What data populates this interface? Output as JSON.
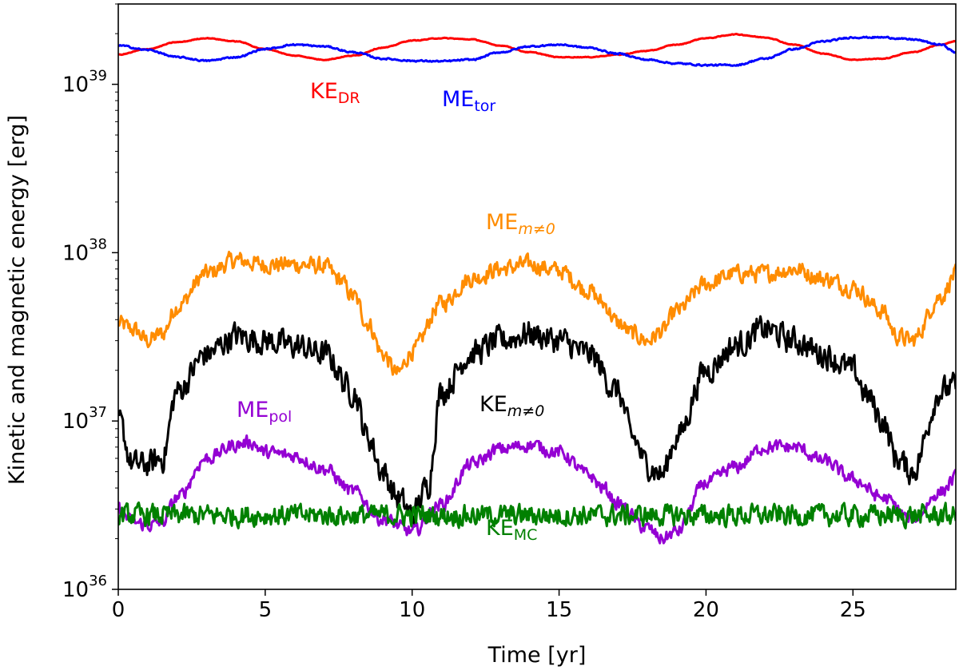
{
  "chart_data": {
    "type": "line",
    "title": "",
    "xlabel": "Time [yr]",
    "ylabel": "Kinetic and magnetic energy [erg]",
    "xlim": [
      0,
      28.5
    ],
    "ylim": [
      1e+36,
      3e+39
    ],
    "yscale": "log",
    "xticks": [
      0,
      5,
      10,
      15,
      20,
      25
    ],
    "xtick_labels": [
      "0",
      "5",
      "10",
      "15",
      "20",
      "25"
    ],
    "yticks": [
      1e+36,
      1e+37,
      1e+38,
      1e+39
    ],
    "ytick_labels": [
      {
        "base": "10",
        "exp": "36"
      },
      {
        "base": "10",
        "exp": "37"
      },
      {
        "base": "10",
        "exp": "38"
      },
      {
        "base": "10",
        "exp": "39"
      }
    ],
    "grid": false,
    "legend": "none (inline labels)",
    "series": [
      {
        "name": "KE_DR",
        "label_main": "KE",
        "label_sub": "DR",
        "label_sub_italic": false,
        "color": "#ff0000",
        "x": [
          0,
          1,
          2,
          3,
          4,
          5,
          6,
          7,
          8,
          9,
          10,
          11,
          12,
          13,
          14,
          15,
          16,
          17,
          18,
          19,
          20,
          21,
          22,
          23,
          24,
          25,
          26,
          27,
          28,
          28.5
        ],
        "y": [
          1.5e+39,
          1.62e+39,
          1.78e+39,
          1.88e+39,
          1.8e+39,
          1.62e+39,
          1.48e+39,
          1.4e+39,
          1.48e+39,
          1.65e+39,
          1.82e+39,
          1.88e+39,
          1.85e+39,
          1.7e+39,
          1.55e+39,
          1.45e+39,
          1.45e+39,
          1.5e+39,
          1.58e+39,
          1.72e+39,
          1.88e+39,
          1.98e+39,
          1.9e+39,
          1.72e+39,
          1.52e+39,
          1.4e+39,
          1.42e+39,
          1.55e+39,
          1.72e+39,
          1.8e+39
        ]
      },
      {
        "name": "ME_tor",
        "label_main": "ME",
        "label_sub": "tor",
        "label_sub_italic": false,
        "color": "#0000ff",
        "x": [
          0,
          1,
          2,
          3,
          4,
          5,
          6,
          7,
          8,
          9,
          10,
          11,
          12,
          13,
          14,
          15,
          16,
          17,
          18,
          19,
          20,
          21,
          22,
          23,
          24,
          25,
          26,
          27,
          28,
          28.5
        ],
        "y": [
          1.7e+39,
          1.6e+39,
          1.45e+39,
          1.38e+39,
          1.45e+39,
          1.62e+39,
          1.72e+39,
          1.68e+39,
          1.55e+39,
          1.42e+39,
          1.38e+39,
          1.37e+39,
          1.4e+39,
          1.55e+39,
          1.68e+39,
          1.72e+39,
          1.65e+39,
          1.52e+39,
          1.4e+39,
          1.33e+39,
          1.3e+39,
          1.3e+39,
          1.42e+39,
          1.62e+39,
          1.8e+39,
          1.9e+39,
          1.9e+39,
          1.85e+39,
          1.72e+39,
          1.55e+39
        ]
      },
      {
        "name": "ME_m≠0",
        "label_main": "ME",
        "label_sub": "m≠0",
        "label_sub_italic": true,
        "color": "#ff8c00",
        "x": [
          0,
          0.5,
          1,
          1.5,
          2,
          3,
          4,
          5,
          6,
          7,
          7.5,
          8,
          8.5,
          9,
          9.5,
          10,
          11,
          12,
          13,
          14,
          15,
          16,
          16.5,
          17,
          17.5,
          18,
          18.5,
          19,
          20,
          21,
          22,
          23,
          24,
          25,
          26,
          26.5,
          27,
          28,
          28.5
        ],
        "y": [
          3.8e+37,
          3.5e+37,
          3e+37,
          3.3e+37,
          4.8e+37,
          7.5e+37,
          9e+37,
          8.5e+37,
          8.5e+37,
          8.3e+37,
          7e+37,
          5.5e+37,
          3.8e+37,
          2.5e+37,
          1.9e+37,
          2.6e+37,
          5e+37,
          7e+37,
          8e+37,
          8.5e+37,
          7.8e+37,
          6e+37,
          5e+37,
          3.8e+37,
          3.3e+37,
          3e+37,
          3.4e+37,
          4.5e+37,
          6.5e+37,
          7.5e+37,
          7.5e+37,
          8e+37,
          7e+37,
          6.2e+37,
          4.5e+37,
          3.2e+37,
          3e+37,
          5.5e+37,
          7.5e+37
        ]
      },
      {
        "name": "KE_m≠0",
        "label_main": "KE",
        "label_sub": "m≠0",
        "label_sub_italic": true,
        "color": "#000000",
        "x": [
          0,
          0.5,
          1,
          1.5,
          2,
          3,
          4,
          5,
          6,
          7,
          8,
          8.5,
          9,
          9.5,
          10,
          10.5,
          11,
          12,
          13,
          14,
          15,
          16,
          17,
          17.5,
          18,
          18.5,
          19,
          20,
          21,
          22,
          23,
          24,
          25,
          25.5,
          26,
          26.5,
          27,
          28,
          28.5
        ],
        "y": [
          1e+37,
          5.5e+36,
          5.5e+36,
          6e+36,
          1.5e+37,
          2.5e+37,
          3.2e+37,
          3e+37,
          2.8e+37,
          2.5e+37,
          1.5e+37,
          8e+36,
          5e+36,
          3.5e+36,
          2.8e+36,
          4e+36,
          1.5e+37,
          2.5e+37,
          3e+37,
          3.3e+37,
          3e+37,
          2.5e+37,
          1.5e+37,
          8e+36,
          5.5e+36,
          4.8e+36,
          8e+36,
          2e+37,
          2.8e+37,
          3.5e+37,
          3e+37,
          2.5e+37,
          2e+37,
          1.4e+37,
          1e+37,
          6e+36,
          5e+36,
          1.5e+37,
          1.6e+37
        ]
      },
      {
        "name": "ME_pol",
        "label_main": "ME",
        "label_sub": "pol",
        "label_sub_italic": false,
        "color": "#9400d3",
        "x": [
          0,
          0.5,
          1,
          1.5,
          2,
          3,
          4,
          4.5,
          5,
          6,
          7,
          8,
          9,
          10,
          11,
          12,
          13,
          14,
          15,
          16,
          16.5,
          17,
          18,
          18.5,
          19,
          20,
          21,
          22,
          23,
          24,
          25,
          26,
          27,
          28,
          28.5
        ],
        "y": [
          3e+36,
          2.5e+36,
          2.4e+36,
          2.5e+36,
          3.5e+36,
          6e+36,
          7.2e+36,
          7.5e+36,
          6.5e+36,
          6.2e+36,
          5.2e+36,
          3.8e+36,
          2.6e+36,
          2.2e+36,
          3.2e+36,
          5.5e+36,
          6.8e+36,
          7.2e+36,
          6.5e+36,
          4.8e+36,
          4e+36,
          3.2e+36,
          2.3e+36,
          2e+36,
          2.2e+36,
          4.3e+36,
          5.3e+36,
          7e+36,
          7e+36,
          5.8e+36,
          4.5e+36,
          3.5e+36,
          2.6e+36,
          3.8e+36,
          4.6e+36
        ]
      },
      {
        "name": "KE_MC",
        "label_main": "KE",
        "label_sub": "MC",
        "label_sub_italic": false,
        "color": "#008000",
        "x": [
          0,
          28.5
        ],
        "y": [
          2.75e+36,
          2.75e+36
        ],
        "note": "noisy, roughly constant around 2.7e36"
      }
    ]
  }
}
